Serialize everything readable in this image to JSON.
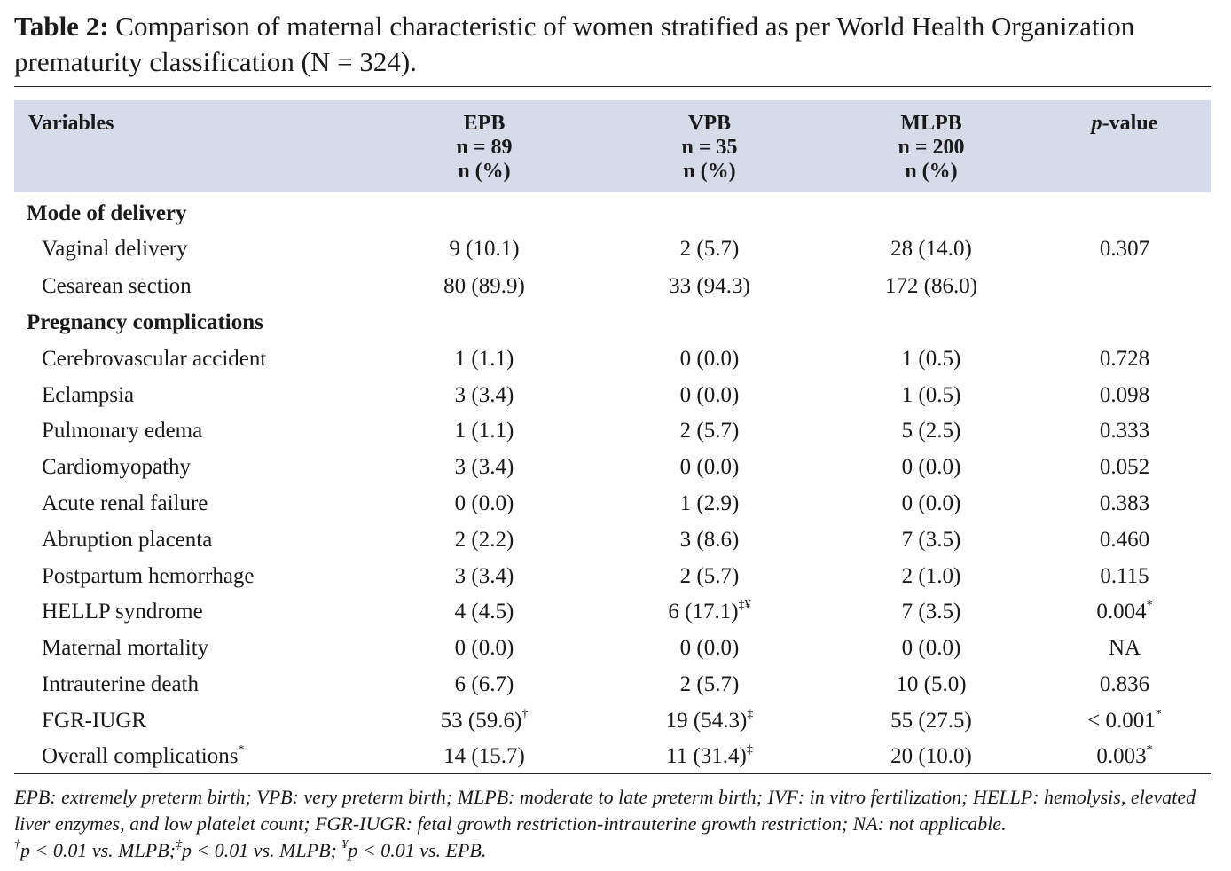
{
  "caption": {
    "label": "Table 2:",
    "text": "Comparison of maternal characteristic of women stratified as per World Health Organization prematurity classification (N = 324)."
  },
  "header": {
    "variables": "Variables",
    "epb": [
      "EPB",
      "n = 89",
      "n (%)"
    ],
    "vpb": [
      "VPB",
      "n = 35",
      "n (%)"
    ],
    "mlpb": [
      "MLPB",
      "n = 200",
      "n (%)"
    ],
    "pvalue_italic": "p",
    "pvalue_rest": "-value"
  },
  "sections": {
    "delivery": "Mode of delivery",
    "complications": "Pregnancy complications"
  },
  "rows": [
    {
      "label": "Vaginal delivery",
      "epb": "9 (10.1)",
      "vpb": "2 (5.7)",
      "mlpb": "28 (14.0)",
      "p": "0.307"
    },
    {
      "label": "Cesarean section",
      "epb": "80 (89.9)",
      "vpb": "33 (94.3)",
      "mlpb": "172 (86.0)",
      "p": ""
    },
    {
      "label": "Cerebrovascular accident",
      "epb": "1 (1.1)",
      "vpb": "0 (0.0)",
      "mlpb": "1 (0.5)",
      "p": "0.728"
    },
    {
      "label": "Eclampsia",
      "epb": "3 (3.4)",
      "vpb": "0 (0.0)",
      "mlpb": "1 (0.5)",
      "p": "0.098"
    },
    {
      "label": "Pulmonary edema",
      "epb": "1 (1.1)",
      "vpb": "2 (5.7)",
      "mlpb": "5 (2.5)",
      "p": "0.333"
    },
    {
      "label": "Cardiomyopathy",
      "epb": "3 (3.4)",
      "vpb": "0 (0.0)",
      "mlpb": "0 (0.0)",
      "p": "0.052"
    },
    {
      "label": "Acute renal failure",
      "epb": "0 (0.0)",
      "vpb": "1 (2.9)",
      "mlpb": "0 (0.0)",
      "p": "0.383"
    },
    {
      "label": "Abruption placenta",
      "epb": "2 (2.2)",
      "vpb": "3 (8.6)",
      "mlpb": "7 (3.5)",
      "p": "0.460"
    },
    {
      "label": "Postpartum hemorrhage",
      "epb": "3 (3.4)",
      "vpb": "2 (5.7)",
      "mlpb": "2 (1.0)",
      "p": "0.115"
    },
    {
      "label": "HELLP syndrome",
      "epb": "4 (4.5)",
      "vpb": "6 (17.1)",
      "vpb_sup": "‡¥",
      "mlpb": "7 (3.5)",
      "p": "0.004",
      "p_sup": "*"
    },
    {
      "label": "Maternal mortality",
      "epb": "0 (0.0)",
      "vpb": "0 (0.0)",
      "mlpb": "0 (0.0)",
      "p": "NA"
    },
    {
      "label": "Intrauterine death",
      "epb": "6 (6.7)",
      "vpb": "2 (5.7)",
      "mlpb": "10 (5.0)",
      "p": "0.836"
    },
    {
      "label": "FGR-IUGR",
      "epb": "53 (59.6)",
      "epb_sup": "†",
      "vpb": "19 (54.3)",
      "vpb_sup": "‡",
      "mlpb": "55 (27.5)",
      "p": "< 0.001",
      "p_sup": "*"
    },
    {
      "label": "Overall complications",
      "label_sup": "*",
      "epb": "14 (15.7)",
      "vpb": "11 (31.4)",
      "vpb_sup": "‡",
      "mlpb": "20 (10.0)",
      "p": "0.003",
      "p_sup": "*"
    }
  ],
  "footnotes": {
    "abbrev": "EPB: extremely preterm birth; VPB: very preterm birth; MLPB: moderate to late preterm birth; IVF: in vitro fertilization; HELLP: hemolysis, elevated liver enzymes, and low platelet count; FGR-IUGR: fetal growth restriction-intrauterine growth restriction; NA: not applicable.",
    "sig": [
      {
        "sym": "†",
        "text": "p < 0.01 vs. MLPB;"
      },
      {
        "sym": "‡",
        "text": "p < 0.01 vs. MLPB;"
      },
      {
        "sym": "¥",
        "text": "p < 0.01 vs. EPB."
      }
    ]
  }
}
